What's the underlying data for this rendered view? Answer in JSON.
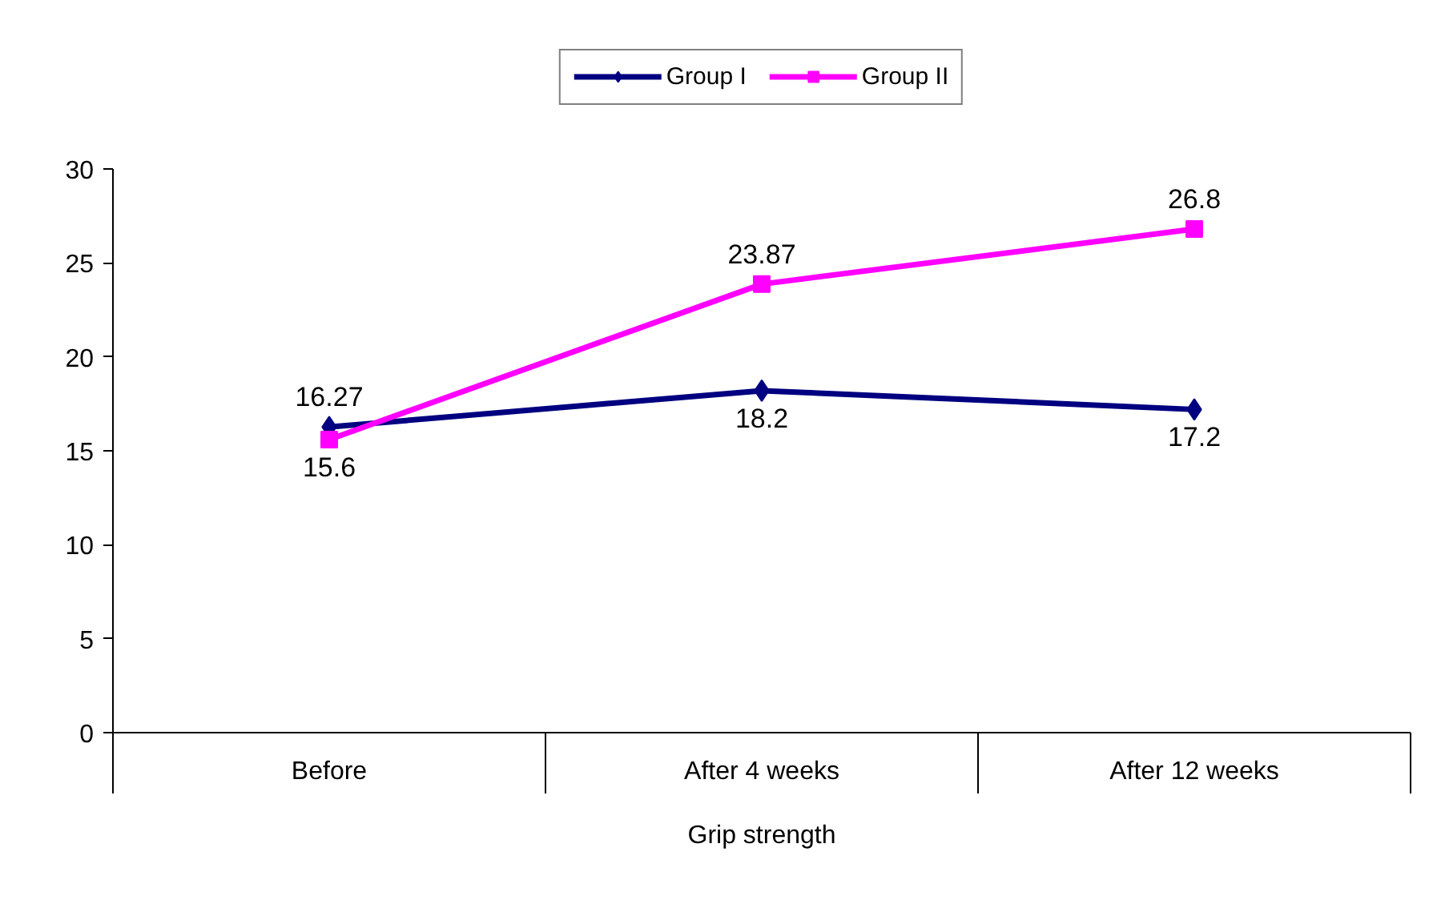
{
  "chart_data": {
    "type": "line",
    "categories": [
      "Before",
      "After 4 weeks",
      "After 12 weeks"
    ],
    "xlabel": "Grip strength",
    "series": [
      {
        "name": "Group I",
        "color": "#000080",
        "values": [
          16.27,
          18.2,
          17.2
        ],
        "marker": "diamond"
      },
      {
        "name": "Group II",
        "color": "#ff00ff",
        "values": [
          15.6,
          23.87,
          26.8
        ],
        "marker": "square"
      }
    ],
    "ylim": [
      0,
      30
    ],
    "yticks": [
      0,
      5,
      10,
      15,
      20,
      25,
      30
    ],
    "data_labels": true,
    "legend": "top",
    "grid": false
  }
}
